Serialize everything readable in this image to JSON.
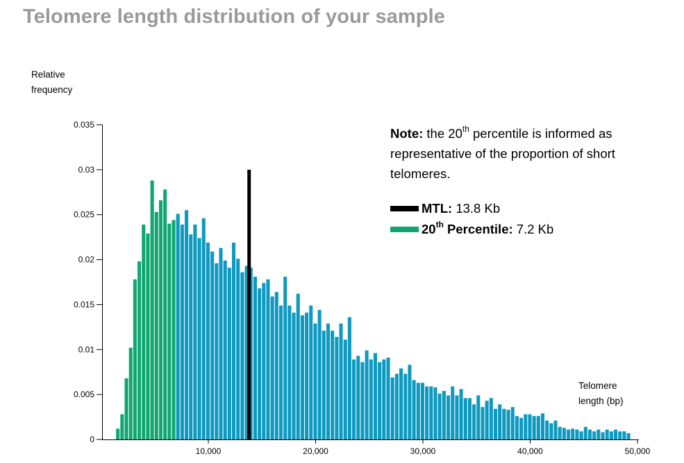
{
  "page": {
    "title": "Telomere length distribution of your sample"
  },
  "note": {
    "bold": "Note:",
    "text_before_sup": " the 20",
    "sup": "th",
    "text_after_sup": " percentile is informed as representative of the proportion of short telomeres."
  },
  "legend": {
    "mtl_label": "MTL:",
    "mtl_value": " 13.8 Kb",
    "pct_label_num": "20",
    "pct_label_sup": "th",
    "pct_label_rest": " Percentile:",
    "pct_value": " 7.2 Kb"
  },
  "colors": {
    "green": "#0fa671",
    "blue": "#0e9ac0",
    "mtl_line": "#000000",
    "title": "#9a9a9a"
  },
  "chart_data": {
    "type": "bar",
    "ylabel_line1": "Relative",
    "ylabel_line2": "frequency",
    "xlabel_line1": "Telomere",
    "xlabel_line2": "length (bp)",
    "xlim": [
      0,
      50000
    ],
    "ylim": [
      0,
      0.035
    ],
    "yticks": [
      0,
      0.005,
      0.01,
      0.015,
      0.02,
      0.025,
      0.03,
      0.035
    ],
    "ytick_labels": [
      "0",
      "0.005",
      "0.01",
      "0.015",
      "0.02",
      "0.025",
      "0.03",
      "0.035"
    ],
    "xticks": [
      10000,
      20000,
      30000,
      40000,
      50000
    ],
    "xtick_labels": [
      "10,000",
      "20,000",
      "30,000",
      "40,000",
      "50,000"
    ],
    "bin_width": 400,
    "x_start": 1400,
    "percentile_20": 7200,
    "mtl": 13800,
    "mtl_line_height": 0.03,
    "values": [
      0.0012,
      0.0028,
      0.0068,
      0.0102,
      0.0178,
      0.0198,
      0.0239,
      0.0229,
      0.0288,
      0.0253,
      0.0266,
      0.0278,
      0.024,
      0.0244,
      0.0251,
      0.0239,
      0.0255,
      0.0228,
      0.0239,
      0.0224,
      0.0246,
      0.0219,
      0.0209,
      0.0196,
      0.0213,
      0.0199,
      0.0191,
      0.0219,
      0.0201,
      0.0186,
      0.0193,
      0.0191,
      0.0181,
      0.0168,
      0.0174,
      0.0178,
      0.0159,
      0.0164,
      0.0149,
      0.0181,
      0.0149,
      0.0141,
      0.0162,
      0.0138,
      0.0141,
      0.0149,
      0.0129,
      0.0144,
      0.0121,
      0.0129,
      0.0121,
      0.0114,
      0.0129,
      0.0111,
      0.0136,
      0.0089,
      0.0093,
      0.0086,
      0.0099,
      0.0089,
      0.0096,
      0.0086,
      0.0089,
      0.0091,
      0.0069,
      0.0073,
      0.0079,
      0.0073,
      0.0083,
      0.0066,
      0.0063,
      0.0063,
      0.0059,
      0.0059,
      0.0058,
      0.0051,
      0.0054,
      0.0049,
      0.0059,
      0.0049,
      0.0056,
      0.0046,
      0.0046,
      0.0039,
      0.0049,
      0.0036,
      0.0043,
      0.0046,
      0.0034,
      0.0039,
      0.0034,
      0.0033,
      0.0036,
      0.0026,
      0.0024,
      0.0028,
      0.0028,
      0.0026,
      0.0026,
      0.0029,
      0.0021,
      0.0018,
      0.0021,
      0.0014,
      0.0013,
      0.0011,
      0.0012,
      0.0011,
      0.0009,
      0.0014,
      0.0011,
      0.0009,
      0.0011,
      0.0008,
      0.0011,
      0.0009,
      0.0011,
      0.0009,
      0.0009,
      0.0007
    ]
  }
}
